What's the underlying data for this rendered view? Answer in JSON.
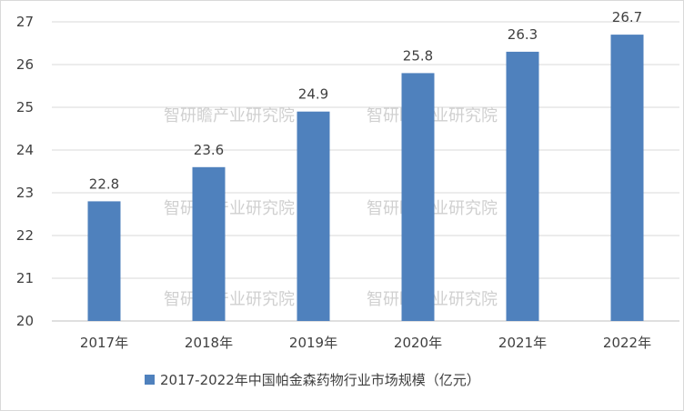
{
  "chart_data": {
    "type": "bar",
    "categories": [
      "2017年",
      "2018年",
      "2019年",
      "2020年",
      "2021年",
      "2022年"
    ],
    "series": [
      {
        "name": "2017-2022年中国帕金森药物行业市场规模（亿元）",
        "values": [
          22.8,
          23.6,
          24.9,
          25.8,
          26.3,
          26.7
        ],
        "color": "#4f81bd"
      }
    ],
    "ylim": [
      20,
      27
    ],
    "yticks": [
      "20",
      "21",
      "22",
      "23",
      "24",
      "25",
      "26",
      "27"
    ],
    "data_labels": [
      "22.8",
      "23.6",
      "24.9",
      "25.8",
      "26.3",
      "26.7"
    ],
    "grid": true,
    "legend_position": "bottom"
  },
  "watermark": "智研瞻产业研究院"
}
